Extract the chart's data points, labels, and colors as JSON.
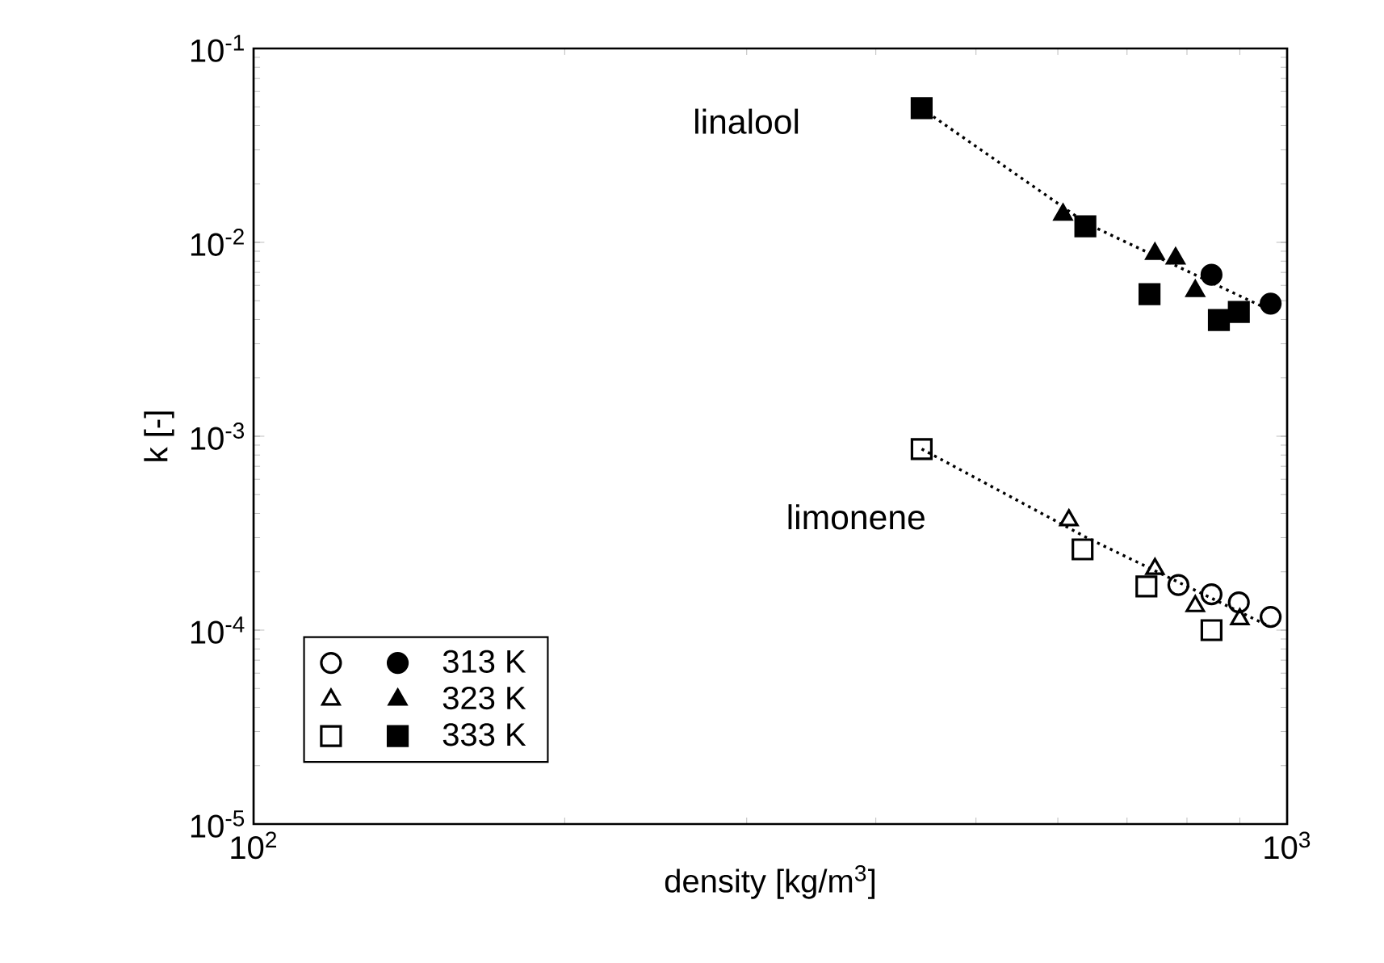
{
  "chart_data": {
    "type": "scatter",
    "xlabel": "density [kg/m$^{3}$]",
    "ylabel": "k [-]",
    "log": "xy",
    "grid": false,
    "legend": "bottom left",
    "xlim": [
      100,
      1000
    ],
    "ylim": [
      1e-05,
      0.1
    ],
    "xticks": [
      {
        "value": 100,
        "label": "10$^{2}$"
      },
      {
        "value": 1000,
        "label": "10$^{3}$"
      }
    ],
    "yticks": [
      {
        "value": 1e-05,
        "label": "10$^{-5}$"
      },
      {
        "value": 0.0001,
        "label": "10$^{-4}$"
      },
      {
        "value": 0.001,
        "label": "10$^{-3}$"
      },
      {
        "value": 0.01,
        "label": "10$^{-2}$"
      },
      {
        "value": 0.1,
        "label": "10$^{-1}$"
      }
    ],
    "annotations": [
      "linalool",
      "limonene"
    ],
    "series": [
      {
        "color": "#000000",
        "marker": "circle",
        "x": [
          785,
          845,
          898,
          964
        ],
        "values": [
          0.000171,
          0.000153,
          0.000139,
          0.000117
        ]
      },
      {
        "name": "313 K",
        "color": "#000000",
        "marker": "circle",
        "x": [
          845,
          964
        ],
        "values": [
          0.00681,
          0.00483
        ]
      },
      {
        "color": "#000000",
        "marker": "triangle",
        "x": [
          615,
          745,
          815,
          900
        ],
        "values": [
          0.000369,
          0.000207,
          0.000133,
          0.000114
        ]
      },
      {
        "name": "323 K",
        "color": "#000000",
        "marker": "triangle",
        "x": [
          607,
          745,
          780,
          815
        ],
        "values": [
          0.0139,
          0.00874,
          0.00826,
          0.00562
        ]
      },
      {
        "color": "#000000",
        "marker": "square",
        "x": [
          443,
          634,
          731,
          845
        ],
        "values": [
          0.000858,
          0.000261,
          0.000168,
          0.0001
        ]
      },
      {
        "name": "333 K",
        "color": "#000000",
        "marker": "square",
        "x": [
          443,
          638,
          736,
          859,
          898
        ],
        "values": [
          0.0492,
          0.0121,
          0.0054,
          0.00398,
          0.00438
        ]
      },
      {
        "type": "line",
        "color": "#000000",
        "marker": "none",
        "line_style": "dotted",
        "x": [
          443,
          640,
          960
        ],
        "values": [
          0.049,
          0.0125,
          0.0045
        ]
      },
      {
        "type": "line",
        "color": "#000000",
        "marker": "none",
        "line_style": "dotted",
        "x": [
          443,
          640,
          960
        ],
        "values": [
          0.00086,
          0.0003,
          0.000105
        ]
      }
    ]
  }
}
